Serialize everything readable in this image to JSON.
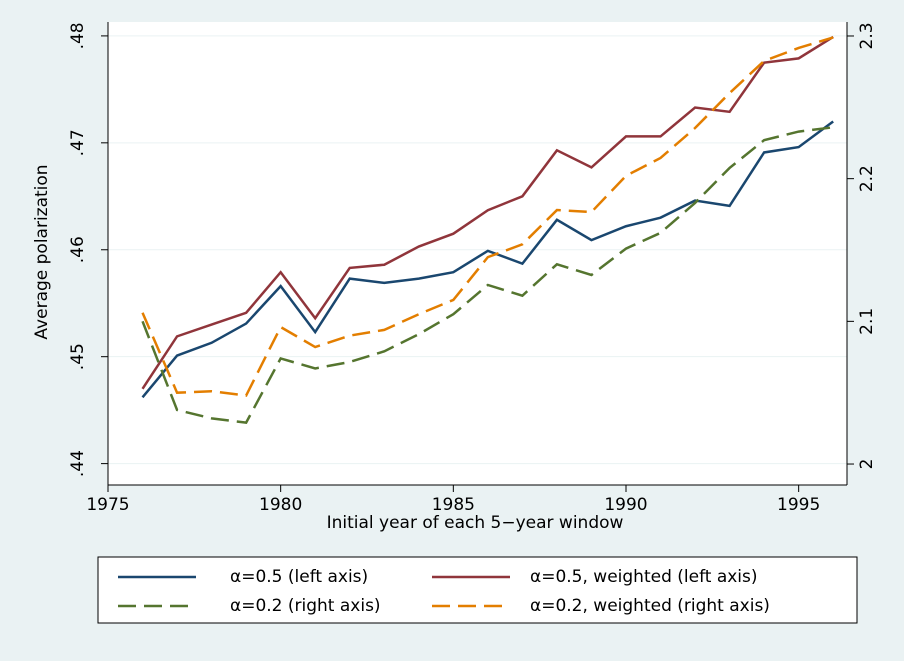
{
  "chart_data": {
    "type": "line",
    "x_label": "Initial year of each 5−year window",
    "y_label": "Average polarization",
    "x": [
      1976,
      1977,
      1978,
      1979,
      1980,
      1981,
      1982,
      1983,
      1984,
      1985,
      1986,
      1987,
      1988,
      1989,
      1990,
      1991,
      1992,
      1993,
      1994,
      1995,
      1996
    ],
    "xlim": [
      1975,
      1996.4
    ],
    "xticks": [
      1975,
      1980,
      1985,
      1990,
      1995
    ],
    "ylim": [
      0.438,
      0.4813
    ],
    "yticks": [
      {
        "value": 0.44,
        "label": ".44"
      },
      {
        "value": 0.45,
        "label": ".45"
      },
      {
        "value": 0.46,
        "label": ".46"
      },
      {
        "value": 0.47,
        "label": ".47"
      },
      {
        "value": 0.48,
        "label": ".48"
      }
    ],
    "y2lim": [
      1.9853,
      2.3098
    ],
    "y2ticks": [
      2,
      2.1,
      2.2,
      2.3
    ],
    "grid": true,
    "series": [
      {
        "name": "α=0.5 (left axis)",
        "color": "#1a476f",
        "dashed": false,
        "values": [
          0.4462,
          0.4501,
          0.4513,
          0.4531,
          0.4566,
          0.4523,
          0.4573,
          0.4569,
          0.4573,
          0.4579,
          0.4599,
          0.4587,
          0.4628,
          0.4609,
          0.4622,
          0.463,
          0.4646,
          0.4641,
          0.4691,
          0.4696,
          0.472
        ]
      },
      {
        "name": "α=0.5, weighted (left axis)",
        "color": "#90353b",
        "dashed": false,
        "values": [
          0.447,
          0.4519,
          0.453,
          0.4541,
          0.4579,
          0.4536,
          0.4583,
          0.4586,
          0.4603,
          0.4615,
          0.4637,
          0.465,
          0.4693,
          0.4677,
          0.4706,
          0.4706,
          0.4733,
          0.4729,
          0.4775,
          0.4779,
          0.4799
        ]
      },
      {
        "name": "α=0.2 (right axis)",
        "color": "#55752f",
        "dashed": true,
        "axis": "y2",
        "values": [
          2.1,
          2.0379,
          2.032,
          2.029,
          2.074,
          2.067,
          2.0715,
          2.079,
          2.091,
          2.105,
          2.1255,
          2.118,
          2.14,
          2.1325,
          2.151,
          2.162,
          2.183,
          2.2075,
          2.227,
          2.233,
          2.236
        ]
      },
      {
        "name": "α=0.2, weighted (right axis)",
        "color": "#e37e00",
        "dashed": true,
        "axis": "y2",
        "values": [
          2.106,
          2.05,
          2.051,
          2.048,
          2.096,
          2.082,
          2.09,
          2.094,
          2.105,
          2.115,
          2.145,
          2.154,
          2.178,
          2.1766,
          2.202,
          2.2145,
          2.2355,
          2.26,
          2.2825,
          2.2916,
          2.299
        ]
      }
    ]
  }
}
